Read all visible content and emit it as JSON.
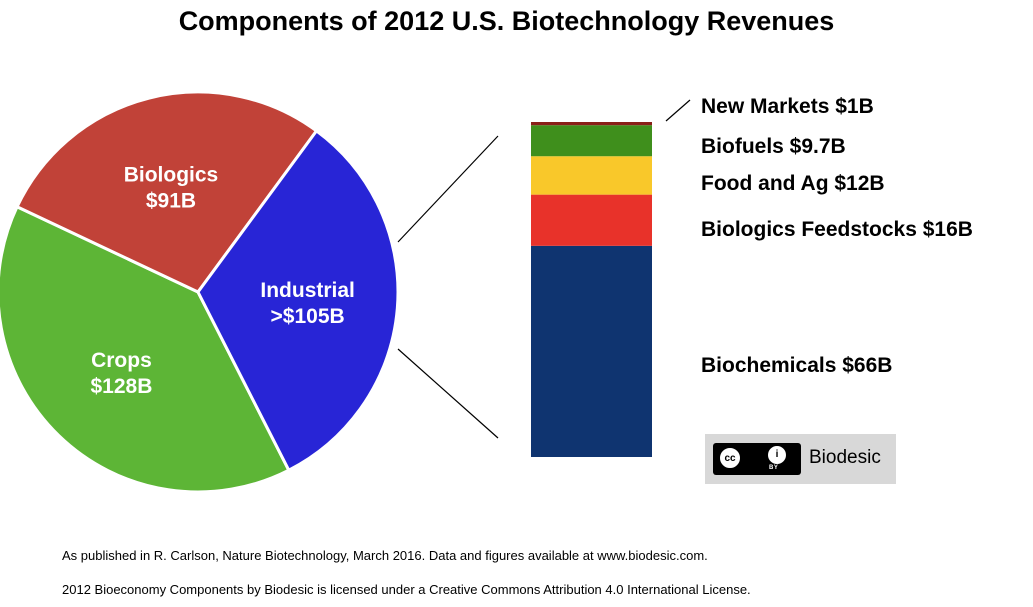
{
  "title": "Components of 2012 U.S. Biotechnology Revenues",
  "colors": {
    "crops": "#5db536",
    "biologics": "#c14238",
    "industrial": "#2825d6",
    "new_markets": "#8a1f18",
    "biofuels": "#3f8f1c",
    "food_ag": "#f9c82a",
    "biologics_feedstocks": "#e8322a",
    "biochemicals": "#0f3470"
  },
  "chart_data": [
    {
      "type": "pie",
      "title": "Components of 2012 U.S. Biotechnology Revenues",
      "categories": [
        "Crops",
        "Biologics",
        "Industrial"
      ],
      "values": [
        128,
        91,
        105
      ],
      "value_labels": [
        "$128B",
        "$91B",
        ">$105B"
      ]
    },
    {
      "type": "bar",
      "stacked": true,
      "parent": "Industrial",
      "categories": [
        "Biochemicals",
        "Biologics Feedstocks",
        "Food and Ag",
        "Biofuels",
        "New Markets"
      ],
      "values": [
        66,
        16,
        12,
        9.7,
        1
      ],
      "labels": [
        "Biochemicals $66B",
        "Biologics Feedstocks $16B",
        "Food and Ag $12B",
        "Biofuels $9.7B",
        "New Markets $1B"
      ]
    }
  ],
  "badge": {
    "cc": "cc",
    "by_icon": "i",
    "by": "BY",
    "name": "Biodesic"
  },
  "footnotes": [
    "As published in R. Carlson, Nature Biotechnology, March 2016. Data and figures available at www.biodesic.com.",
    "2012 Bioeconomy Components by Biodesic is licensed under a Creative Commons Attribution 4.0 International License."
  ]
}
